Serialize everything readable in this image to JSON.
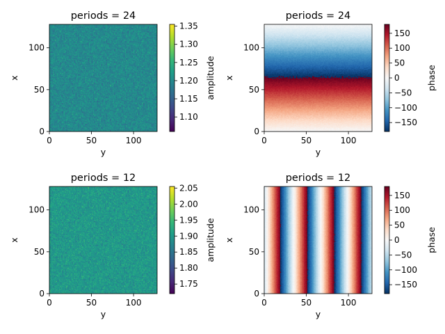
{
  "chart_data": [
    {
      "type": "heatmap",
      "title": "periods = 24",
      "xlabel": "y",
      "ylabel": "x",
      "xlim": [
        0,
        128
      ],
      "ylim": [
        0,
        128
      ],
      "xticks": [
        0,
        50,
        100
      ],
      "yticks": [
        0,
        50,
        100
      ],
      "colormap": "viridis",
      "pattern": "noise",
      "mean": 1.2,
      "colorbar": {
        "label": "amplitude",
        "range": [
          1.06,
          1.355
        ],
        "ticks": [
          1.1,
          1.15,
          1.2,
          1.25,
          1.3,
          1.35
        ],
        "tick_labels": [
          "1.10",
          "1.15",
          "1.20",
          "1.25",
          "1.30",
          "1.35"
        ]
      }
    },
    {
      "type": "heatmap",
      "title": "periods = 24",
      "xlabel": "y",
      "ylabel": "x",
      "xlim": [
        0,
        128
      ],
      "ylim": [
        0,
        128
      ],
      "xticks": [
        0,
        50,
        100
      ],
      "yticks": [
        0,
        50,
        100
      ],
      "colormap": "RdBu_r",
      "pattern": "phase-along-x",
      "phase_period": 128,
      "colorbar": {
        "label": "phase",
        "range": [
          -180,
          180
        ],
        "ticks": [
          150,
          100,
          50,
          0,
          -50,
          -100,
          -150
        ],
        "tick_labels": [
          "150",
          "100",
          "50",
          "0",
          "−50",
          "−100",
          "−150"
        ]
      }
    },
    {
      "type": "heatmap",
      "title": "periods = 12",
      "xlabel": "y",
      "ylabel": "x",
      "xlim": [
        0,
        128
      ],
      "ylim": [
        0,
        128
      ],
      "xticks": [
        0,
        50,
        100
      ],
      "yticks": [
        0,
        50,
        100
      ],
      "colormap": "viridis",
      "pattern": "noise",
      "mean": 1.9,
      "colorbar": {
        "label": "amplitude",
        "range": [
          1.72,
          2.055
        ],
        "ticks": [
          1.75,
          1.8,
          1.85,
          1.9,
          1.95,
          2.0,
          2.05
        ],
        "tick_labels": [
          "1.75",
          "1.80",
          "1.85",
          "1.90",
          "1.95",
          "2.00",
          "2.05"
        ]
      }
    },
    {
      "type": "heatmap",
      "title": "periods = 12",
      "xlabel": "y",
      "ylabel": "x",
      "xlim": [
        0,
        128
      ],
      "ylim": [
        0,
        128
      ],
      "xticks": [
        0,
        50,
        100
      ],
      "yticks": [
        0,
        50,
        100
      ],
      "colormap": "RdBu_r",
      "pattern": "phase-along-y",
      "phase_period": 32,
      "colorbar": {
        "label": "phase",
        "range": [
          -180,
          180
        ],
        "ticks": [
          150,
          100,
          50,
          0,
          -50,
          -100,
          -150
        ],
        "tick_labels": [
          "150",
          "100",
          "50",
          "0",
          "−50",
          "−100",
          "−150"
        ]
      }
    }
  ]
}
